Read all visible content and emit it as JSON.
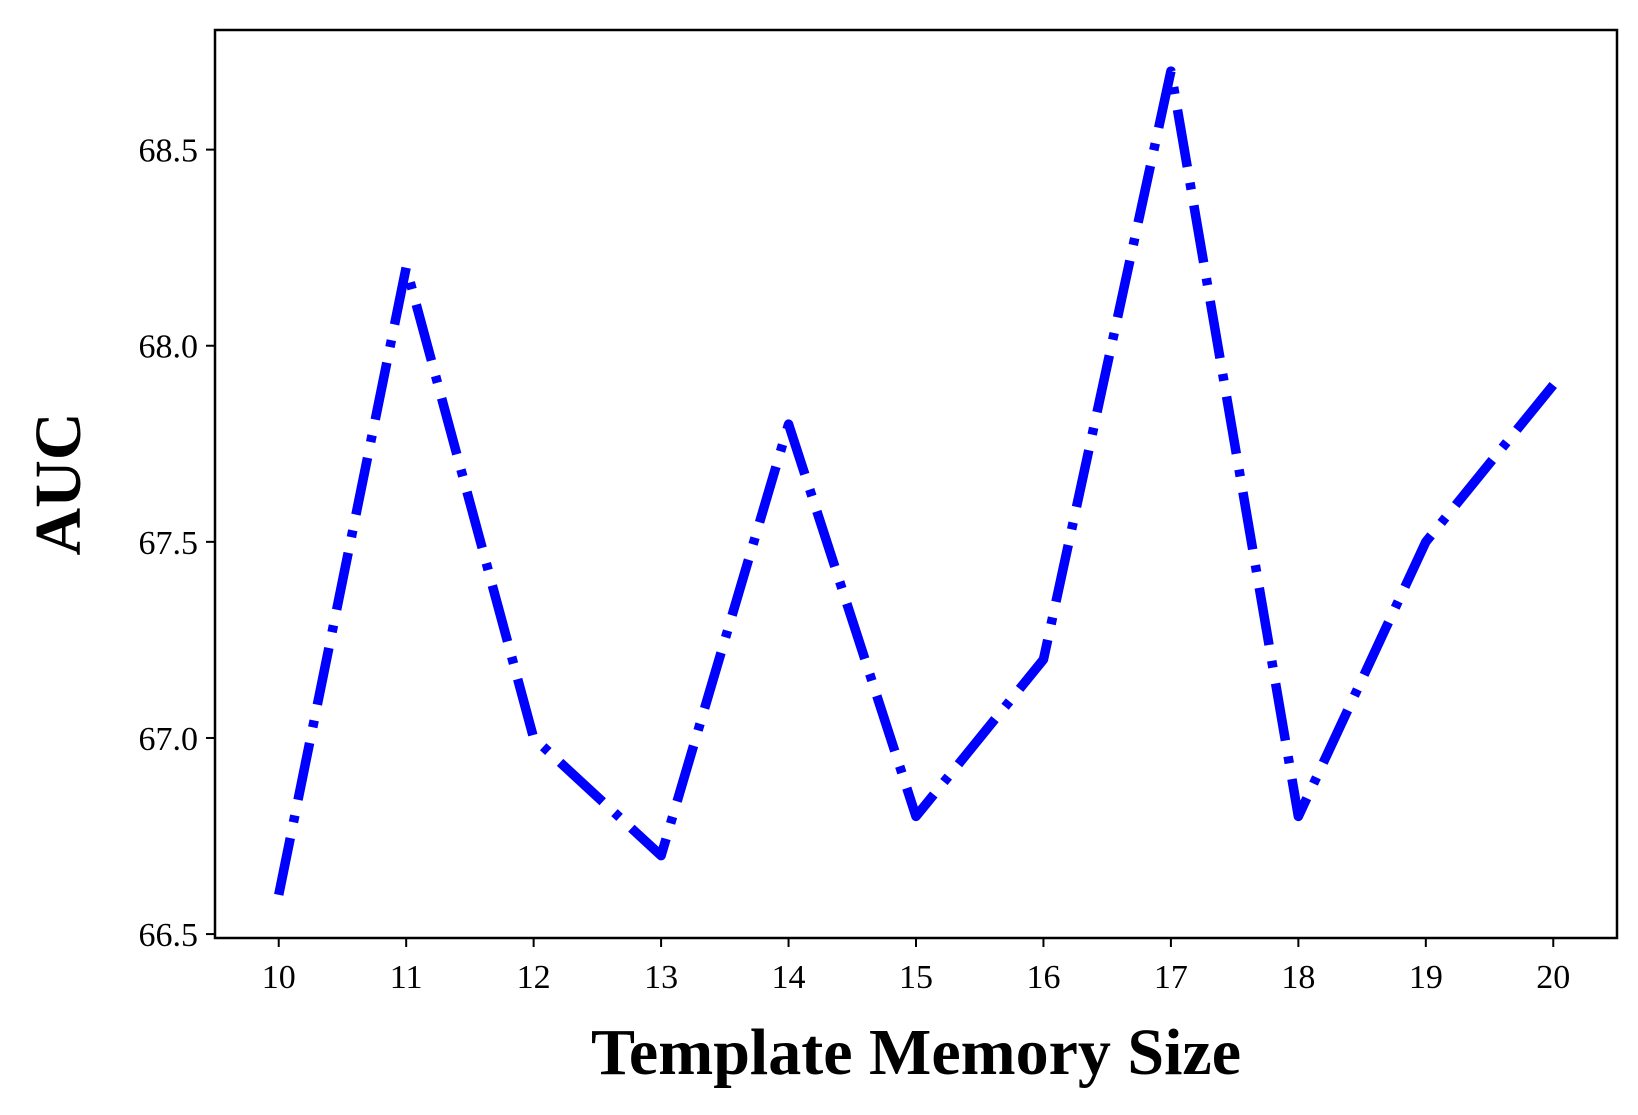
{
  "chart_data": {
    "type": "line",
    "title": "",
    "xlabel": "Template Memory Size",
    "ylabel": "AUC",
    "x": [
      10,
      11,
      12,
      13,
      14,
      15,
      16,
      17,
      18,
      19,
      20
    ],
    "series": [
      {
        "values": [
          66.6,
          68.2,
          67.0,
          66.7,
          67.8,
          66.8,
          67.2,
          68.7,
          66.8,
          67.5,
          67.9
        ],
        "color": "#0000ff",
        "line_style": "dash-dot"
      }
    ],
    "xticks": [
      "10",
      "11",
      "12",
      "13",
      "14",
      "15",
      "16",
      "17",
      "18",
      "19",
      "20"
    ],
    "yticks": [
      "66.5",
      "67.0",
      "67.5",
      "68.0",
      "68.5"
    ],
    "ytick_values": [
      66.5,
      67.0,
      67.5,
      68.0,
      68.5
    ],
    "xlim": [
      9.5,
      20.5
    ],
    "ylim": [
      66.49,
      68.805
    ],
    "grid": false,
    "legend": "none"
  }
}
